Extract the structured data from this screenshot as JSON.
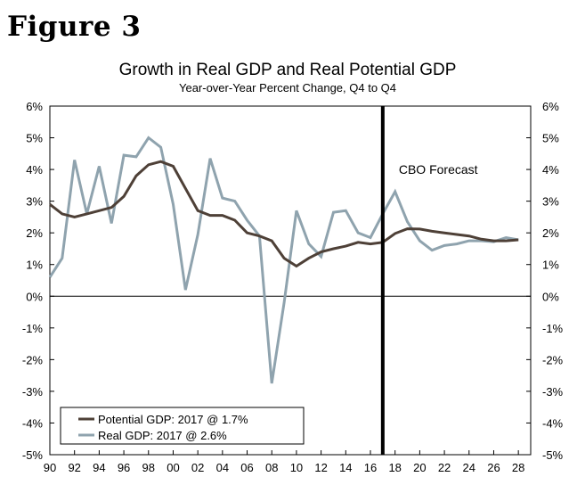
{
  "figure_label": "Figure 3",
  "chart_data": {
    "type": "line",
    "title": "Growth in Real GDP and Real Potential GDP",
    "subtitle": "Year-over-Year Percent Change, Q4 to Q4",
    "xlabel": "",
    "ylabel": "",
    "xlim": [
      1990,
      2029
    ],
    "ylim": [
      -5,
      6
    ],
    "y_ticks": [
      6,
      5,
      4,
      3,
      2,
      1,
      0,
      -1,
      -2,
      -3,
      -4,
      -5
    ],
    "y_tick_labels": [
      "6%",
      "5%",
      "4%",
      "3%",
      "2%",
      "1%",
      "0%",
      "-1%",
      "-2%",
      "-3%",
      "-4%",
      "-5%"
    ],
    "x_ticks": [
      1990,
      1992,
      1994,
      1996,
      1998,
      2000,
      2002,
      2004,
      2006,
      2008,
      2010,
      2012,
      2014,
      2016,
      2018,
      2020,
      2022,
      2024,
      2026,
      2028
    ],
    "x_tick_labels": [
      "90",
      "92",
      "94",
      "96",
      "98",
      "00",
      "02",
      "04",
      "06",
      "08",
      "10",
      "12",
      "14",
      "16",
      "18",
      "20",
      "22",
      "24",
      "26",
      "28"
    ],
    "forecast_line_x": 2017,
    "forecast_label": "CBO Forecast",
    "legend_position": "bottom-left",
    "series": [
      {
        "name": "Potential GDP: 2017 @ 1.7%",
        "color": "#4e4037",
        "x": [
          1990,
          1991,
          1992,
          1993,
          1994,
          1995,
          1996,
          1997,
          1998,
          1999,
          2000,
          2001,
          2002,
          2003,
          2004,
          2005,
          2006,
          2007,
          2008,
          2009,
          2010,
          2011,
          2012,
          2013,
          2014,
          2015,
          2016,
          2017,
          2018,
          2019,
          2020,
          2021,
          2022,
          2023,
          2024,
          2025,
          2026,
          2027,
          2028
        ],
        "values": [
          2.9,
          2.6,
          2.5,
          2.6,
          2.7,
          2.8,
          3.15,
          3.8,
          4.15,
          4.25,
          4.1,
          3.4,
          2.7,
          2.55,
          2.55,
          2.4,
          2.0,
          1.9,
          1.75,
          1.2,
          0.95,
          1.2,
          1.4,
          1.5,
          1.58,
          1.7,
          1.65,
          1.7,
          1.98,
          2.13,
          2.12,
          2.05,
          2.0,
          1.95,
          1.9,
          1.8,
          1.75,
          1.75,
          1.78
        ]
      },
      {
        "name": "Real GDP: 2017 @ 2.6%",
        "color": "#8fa3ae",
        "x": [
          1990,
          1991,
          1992,
          1993,
          1994,
          1995,
          1996,
          1997,
          1998,
          1999,
          2000,
          2001,
          2002,
          2003,
          2004,
          2005,
          2006,
          2007,
          2008,
          2009,
          2010,
          2011,
          2012,
          2013,
          2014,
          2015,
          2016,
          2017,
          2018,
          2019,
          2020,
          2021,
          2022,
          2023,
          2024,
          2025,
          2026,
          2027,
          2028
        ],
        "values": [
          0.6,
          1.2,
          4.3,
          2.6,
          4.1,
          2.3,
          4.45,
          4.4,
          5.0,
          4.7,
          2.9,
          0.2,
          1.95,
          4.35,
          3.1,
          3.0,
          2.4,
          1.9,
          -2.75,
          -0.2,
          2.7,
          1.65,
          1.25,
          2.65,
          2.7,
          2.0,
          1.85,
          2.6,
          3.3,
          2.35,
          1.75,
          1.45,
          1.6,
          1.65,
          1.75,
          1.75,
          1.72,
          1.85,
          1.78
        ]
      }
    ]
  }
}
